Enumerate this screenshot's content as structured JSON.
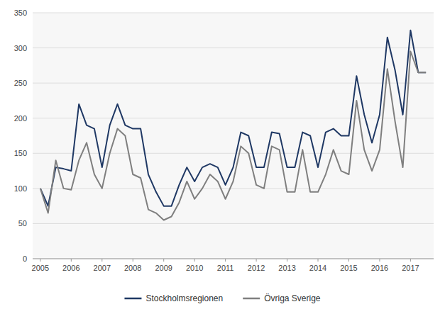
{
  "chart_data": {
    "type": "line",
    "categories": [
      "2005",
      null,
      null,
      null,
      "2006",
      null,
      null,
      null,
      "2007",
      null,
      null,
      null,
      "2008",
      null,
      null,
      null,
      "2009",
      null,
      null,
      null,
      "2010",
      null,
      null,
      null,
      "2011",
      null,
      null,
      null,
      "2012",
      null,
      null,
      null,
      "2013",
      null,
      null,
      null,
      "2014",
      null,
      null,
      null,
      "2015",
      null,
      null,
      null,
      "2016",
      null,
      null,
      null,
      "2017",
      null,
      null
    ],
    "series": [
      {
        "name": "Stockholmsregionen",
        "color": "#1F3864",
        "values": [
          100,
          75,
          130,
          128,
          125,
          220,
          190,
          185,
          130,
          190,
          220,
          190,
          185,
          185,
          120,
          95,
          75,
          75,
          105,
          130,
          110,
          130,
          135,
          130,
          105,
          130,
          180,
          175,
          130,
          130,
          180,
          178,
          130,
          130,
          180,
          175,
          130,
          180,
          185,
          175,
          175,
          260,
          205,
          165,
          205,
          315,
          268,
          205,
          325,
          265,
          265
        ]
      },
      {
        "name": "Övriga Sverige",
        "color": "#7F7F7F",
        "values": [
          100,
          65,
          140,
          100,
          98,
          140,
          165,
          120,
          100,
          150,
          185,
          175,
          120,
          115,
          70,
          65,
          55,
          60,
          80,
          110,
          85,
          100,
          120,
          110,
          85,
          110,
          160,
          150,
          105,
          100,
          160,
          155,
          95,
          95,
          155,
          95,
          95,
          120,
          155,
          125,
          120,
          225,
          155,
          125,
          155,
          270,
          195,
          130,
          295,
          265,
          265
        ]
      }
    ],
    "ylim": [
      0,
      350
    ],
    "yticks": [
      0,
      50,
      100,
      150,
      200,
      250,
      300,
      350
    ],
    "grid": true,
    "legend": "bottom"
  }
}
